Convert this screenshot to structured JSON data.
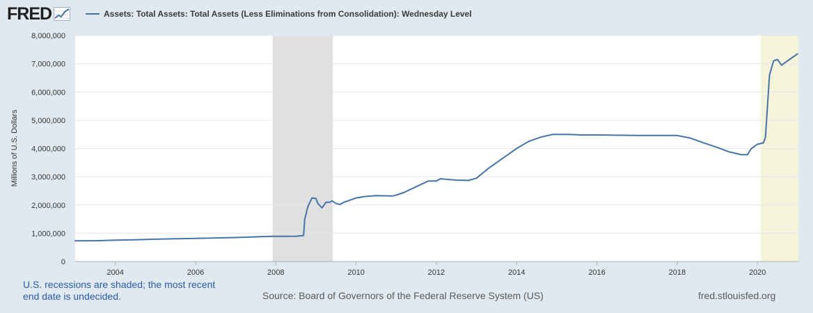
{
  "header": {
    "logo": "FRED",
    "logo_graph_icon": "line-chart-icon",
    "series_title": "Assets: Total Assets: Total Assets (Less Eliminations from Consolidation): Wednesday Level"
  },
  "footer": {
    "recession_note": "U.S. recessions are shaded; the most recent end date is undecided.",
    "source": "Source: Board of Governors of the Federal Reserve System (US)",
    "url": "fred.stlouisfed.org"
  },
  "chart_data": {
    "type": "line",
    "title": "",
    "xlabel": "",
    "ylabel": "Millions of U.S. Dollars",
    "xlim": [
      2003.0,
      2021.02
    ],
    "ylim": [
      0,
      8000000
    ],
    "x_ticks": [
      "2004",
      "2006",
      "2008",
      "2010",
      "2012",
      "2014",
      "2016",
      "2018",
      "2020"
    ],
    "x_tick_values": [
      2004,
      2006,
      2008,
      2010,
      2012,
      2014,
      2016,
      2018,
      2020
    ],
    "y_ticks": [
      "0",
      "1,000,000",
      "2,000,000",
      "3,000,000",
      "4,000,000",
      "5,000,000",
      "6,000,000",
      "7,000,000",
      "8,000,000"
    ],
    "y_tick_values": [
      0,
      1000000,
      2000000,
      3000000,
      4000000,
      5000000,
      6000000,
      7000000,
      8000000
    ],
    "grid": true,
    "recessions": [
      {
        "start": 2007.92,
        "end": 2009.42,
        "color": "#e0e0e0"
      },
      {
        "start": 2020.08,
        "end": 2021.02,
        "color": "#f5f3da"
      }
    ],
    "series": [
      {
        "color": "#4572a7",
        "x": [
          2003.0,
          2003.5,
          2004.0,
          2004.5,
          2005.0,
          2005.5,
          2006.0,
          2006.5,
          2007.0,
          2007.5,
          2007.9,
          2008.2,
          2008.5,
          2008.69,
          2008.72,
          2008.8,
          2008.9,
          2009.0,
          2009.05,
          2009.15,
          2009.25,
          2009.35,
          2009.4,
          2009.5,
          2009.6,
          2009.7,
          2009.8,
          2010.0,
          2010.2,
          2010.5,
          2010.9,
          2011.0,
          2011.2,
          2011.5,
          2011.8,
          2011.9,
          2012.0,
          2012.1,
          2012.5,
          2012.8,
          2013.0,
          2013.3,
          2013.7,
          2014.0,
          2014.3,
          2014.6,
          2014.9,
          2015.3,
          2015.6,
          2016.0,
          2016.5,
          2017.0,
          2017.5,
          2018.0,
          2018.3,
          2018.7,
          2019.0,
          2019.3,
          2019.6,
          2019.75,
          2019.85,
          2020.0,
          2020.15,
          2020.2,
          2020.3,
          2020.4,
          2020.5,
          2020.6,
          2020.7,
          2020.8,
          2021.0
        ],
        "y": [
          730000,
          735000,
          755000,
          770000,
          790000,
          805000,
          820000,
          835000,
          850000,
          875000,
          890000,
          890000,
          895000,
          920000,
          1500000,
          1950000,
          2250000,
          2230000,
          2050000,
          1900000,
          2100000,
          2100000,
          2150000,
          2050000,
          2020000,
          2100000,
          2150000,
          2250000,
          2300000,
          2330000,
          2320000,
          2350000,
          2450000,
          2650000,
          2850000,
          2850000,
          2850000,
          2930000,
          2880000,
          2870000,
          2950000,
          3300000,
          3700000,
          4000000,
          4250000,
          4400000,
          4500000,
          4500000,
          4480000,
          4480000,
          4470000,
          4460000,
          4460000,
          4460000,
          4380000,
          4180000,
          4040000,
          3880000,
          3780000,
          3780000,
          4000000,
          4150000,
          4200000,
          4400000,
          6600000,
          7100000,
          7150000,
          6950000,
          7050000,
          7150000,
          7350000
        ]
      }
    ]
  }
}
